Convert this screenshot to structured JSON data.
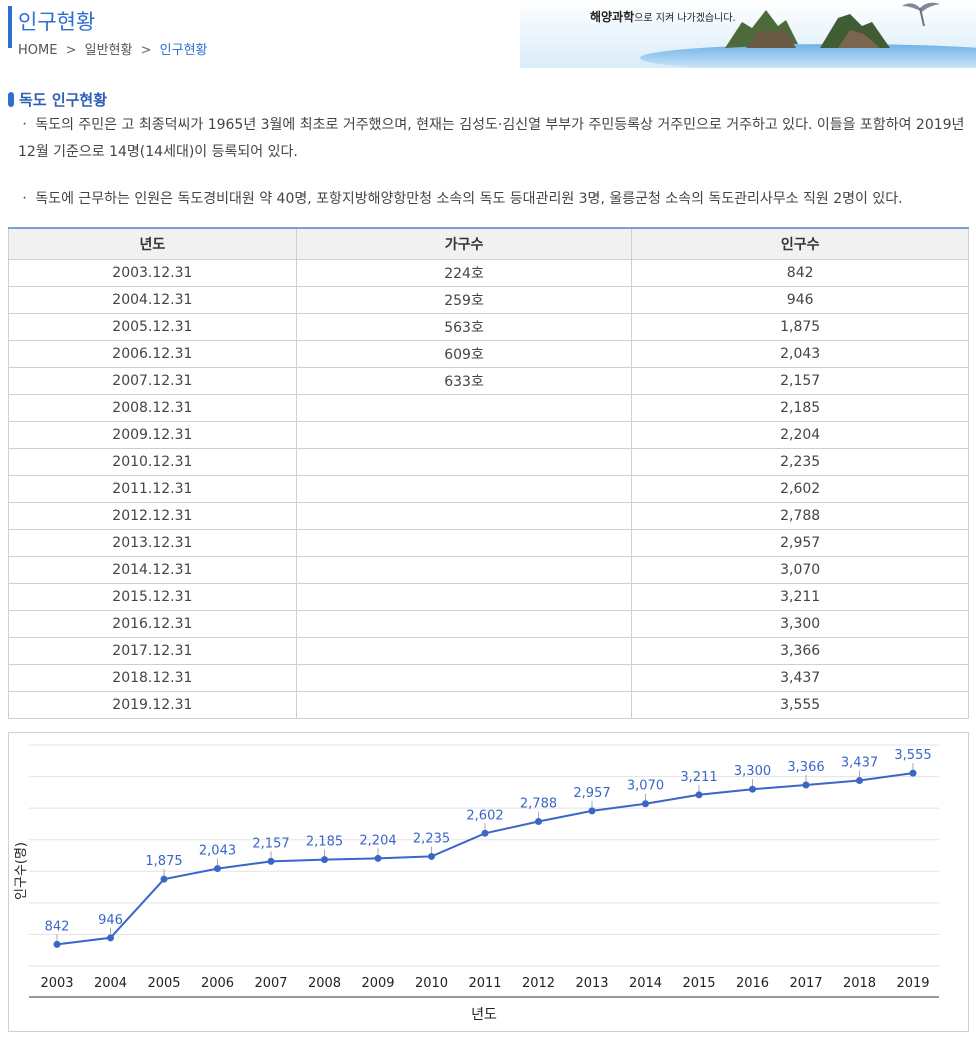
{
  "header": {
    "title": "인구현황",
    "breadcrumb": {
      "home": "HOME",
      "sep1": ">",
      "parent": "일반현황",
      "sep2": ">",
      "current": "인구현황"
    },
    "banner_text": "해양과학",
    "banner_text_small": "으로 지켜 나가겠습니다."
  },
  "section": {
    "title": "독도 인구현황",
    "para1": "ㆍ 독도의 주민은 고 최종덕씨가 1965년 3월에 최초로 거주했으며, 현재는 김성도·김신열 부부가 주민등록상 거주민으로 거주하고 있다. 이들을 포함하여 2019년 12월 기준으로 14명(14세대)이 등록되어 있다.",
    "para2": "ㆍ 독도에 근무하는 인원은 독도경비대원 약 40명, 포항지방해양항만청 소속의 독도 등대관리원 3명, 울릉군청 소속의 독도관리사무소 직원 2명이 있다."
  },
  "table": {
    "headers": [
      "년도",
      "가구수",
      "인구수"
    ],
    "rows": [
      [
        "2003.12.31",
        "224호",
        "842"
      ],
      [
        "2004.12.31",
        "259호",
        "946"
      ],
      [
        "2005.12.31",
        "563호",
        "1,875"
      ],
      [
        "2006.12.31",
        "609호",
        "2,043"
      ],
      [
        "2007.12.31",
        "633호",
        "2,157"
      ],
      [
        "2008.12.31",
        "",
        "2,185"
      ],
      [
        "2009.12.31",
        "",
        "2,204"
      ],
      [
        "2010.12.31",
        "",
        "2,235"
      ],
      [
        "2011.12.31",
        "",
        "2,602"
      ],
      [
        "2012.12.31",
        "",
        "2,788"
      ],
      [
        "2013.12.31",
        "",
        "2,957"
      ],
      [
        "2014.12.31",
        "",
        "3,070"
      ],
      [
        "2015.12.31",
        "",
        "3,211"
      ],
      [
        "2016.12.31",
        "",
        "3,300"
      ],
      [
        "2017.12.31",
        "",
        "3,366"
      ],
      [
        "2018.12.31",
        "",
        "3,437"
      ],
      [
        "2019.12.31",
        "",
        "3,555"
      ]
    ]
  },
  "chart_data": {
    "type": "line",
    "xlabel": "년도",
    "ylabel": "인구수(명)",
    "categories": [
      "2003",
      "2004",
      "2005",
      "2006",
      "2007",
      "2008",
      "2009",
      "2010",
      "2011",
      "2012",
      "2013",
      "2014",
      "2015",
      "2016",
      "2017",
      "2018",
      "2019"
    ],
    "values": [
      842,
      946,
      1875,
      2043,
      2157,
      2185,
      2204,
      2235,
      2602,
      2788,
      2957,
      3070,
      3211,
      3300,
      3366,
      3437,
      3555
    ],
    "labels": [
      "842",
      "946",
      "1,875",
      "2,043",
      "2,157",
      "2,185",
      "2,204",
      "2,235",
      "2,602",
      "2,788",
      "2,957",
      "3,070",
      "3,211",
      "3,300",
      "3,366",
      "3,437",
      "3,555"
    ],
    "ylim": [
      500,
      4000
    ],
    "grid": true,
    "line_color": "#3a66c8"
  }
}
